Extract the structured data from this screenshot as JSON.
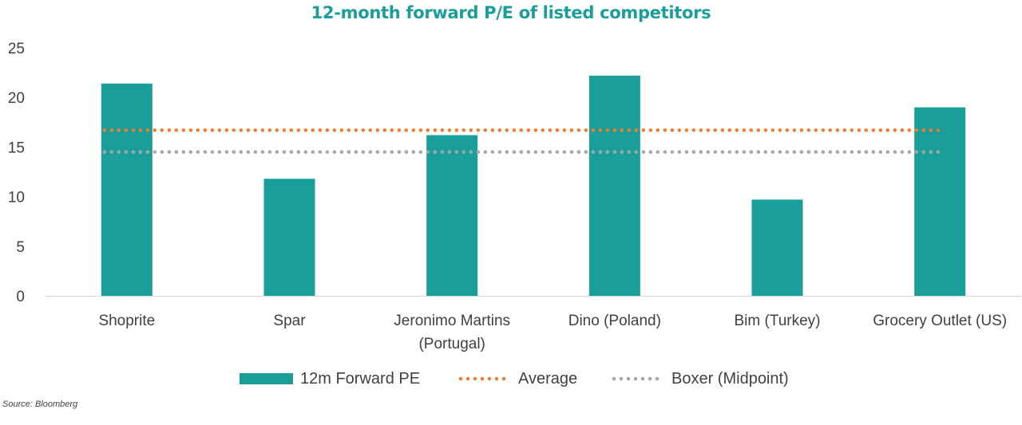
{
  "title": "12-month forward P/E of listed competitors",
  "source": "Source: Bloomberg",
  "colors": {
    "bar": "#1a9e9a",
    "average": "#ed7d31",
    "boxer": "#a6a6a6",
    "title": "#1a9e9a"
  },
  "chart_data": {
    "type": "bar",
    "title": "12-month forward P/E of listed competitors",
    "categories": [
      "Shoprite",
      "Spar",
      "Jeronimo Martins (Portugal)",
      "Dino (Poland)",
      "Bim (Turkey)",
      "Grocery Outlet (US)"
    ],
    "category_lines": [
      [
        "Shoprite"
      ],
      [
        "Spar"
      ],
      [
        "Jeronimo Martins",
        "(Portugal)"
      ],
      [
        "Dino (Poland)"
      ],
      [
        "Bim (Turkey)"
      ],
      [
        "Grocery Outlet (US)"
      ]
    ],
    "series": [
      {
        "name": "12m Forward PE",
        "type": "bar",
        "values": [
          21.4,
          11.8,
          16.2,
          22.2,
          9.7,
          19.0
        ]
      },
      {
        "name": "Average",
        "type": "line",
        "style": "dotted",
        "values": [
          16.7,
          16.7,
          16.7,
          16.7,
          16.7,
          16.7
        ]
      },
      {
        "name": "Boxer (Midpoint)",
        "type": "line",
        "style": "dotted",
        "values": [
          14.5,
          14.5,
          14.5,
          14.5,
          14.5,
          14.5
        ]
      }
    ],
    "yticks": [
      0,
      5,
      10,
      15,
      20,
      25
    ],
    "ylim": [
      0,
      25
    ],
    "grid": false,
    "legend": "bottom"
  }
}
